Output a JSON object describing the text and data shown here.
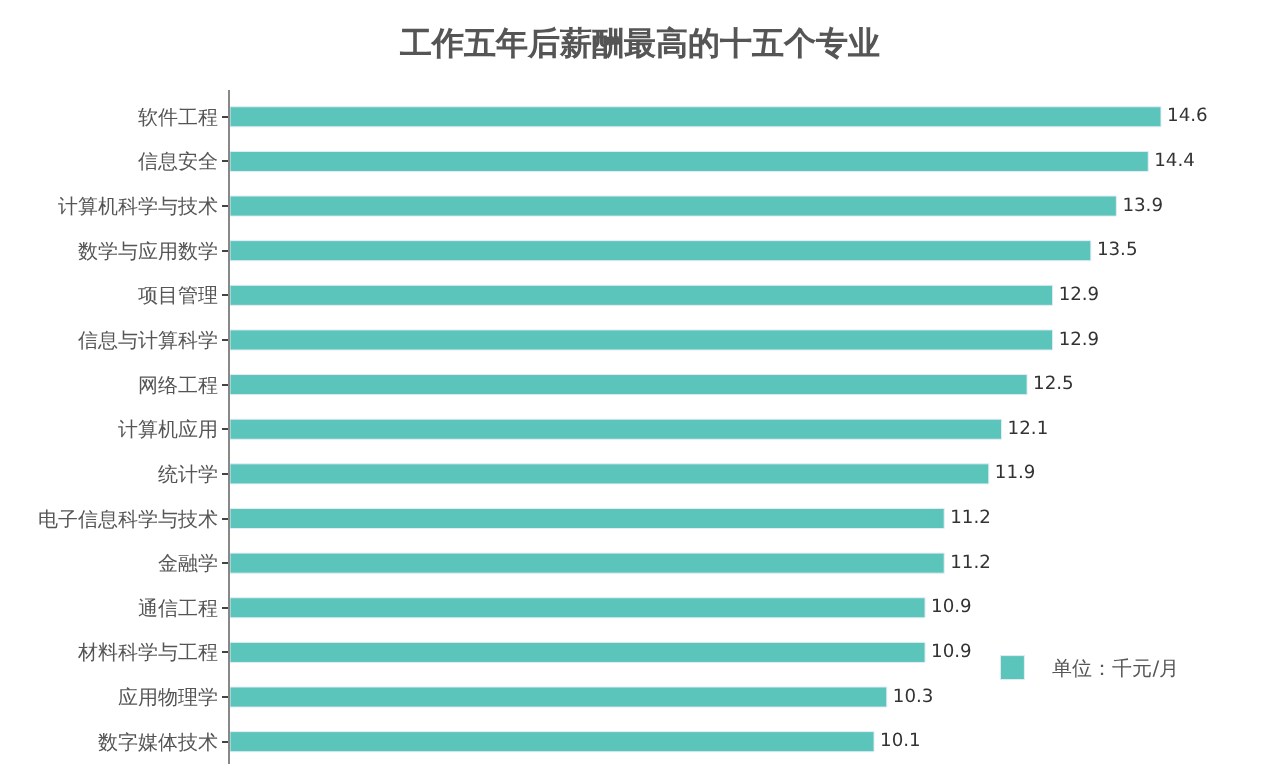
{
  "chart_data": {
    "type": "bar",
    "orientation": "horizontal",
    "title": "工作五年后薪酬最高的十五个专业",
    "categories": [
      "软件工程",
      "信息安全",
      "计算机科学与技术",
      "数学与应用数学",
      "项目管理",
      "信息与计算科学",
      "网络工程",
      "计算机应用",
      "统计学",
      "电子信息科学与技术",
      "金融学",
      "通信工程",
      "材料科学与工程",
      "应用物理学",
      "数字媒体技术"
    ],
    "series": [
      {
        "name": "单位：千元/月",
        "color": "#5bc4bb",
        "values": [
          14.6,
          14.4,
          13.9,
          13.5,
          12.9,
          12.9,
          12.5,
          12.1,
          11.9,
          11.2,
          11.2,
          10.9,
          10.9,
          10.3,
          10.1
        ]
      }
    ],
    "data_labels": true,
    "legend": "bottom right",
    "tick_labels": "y"
  }
}
